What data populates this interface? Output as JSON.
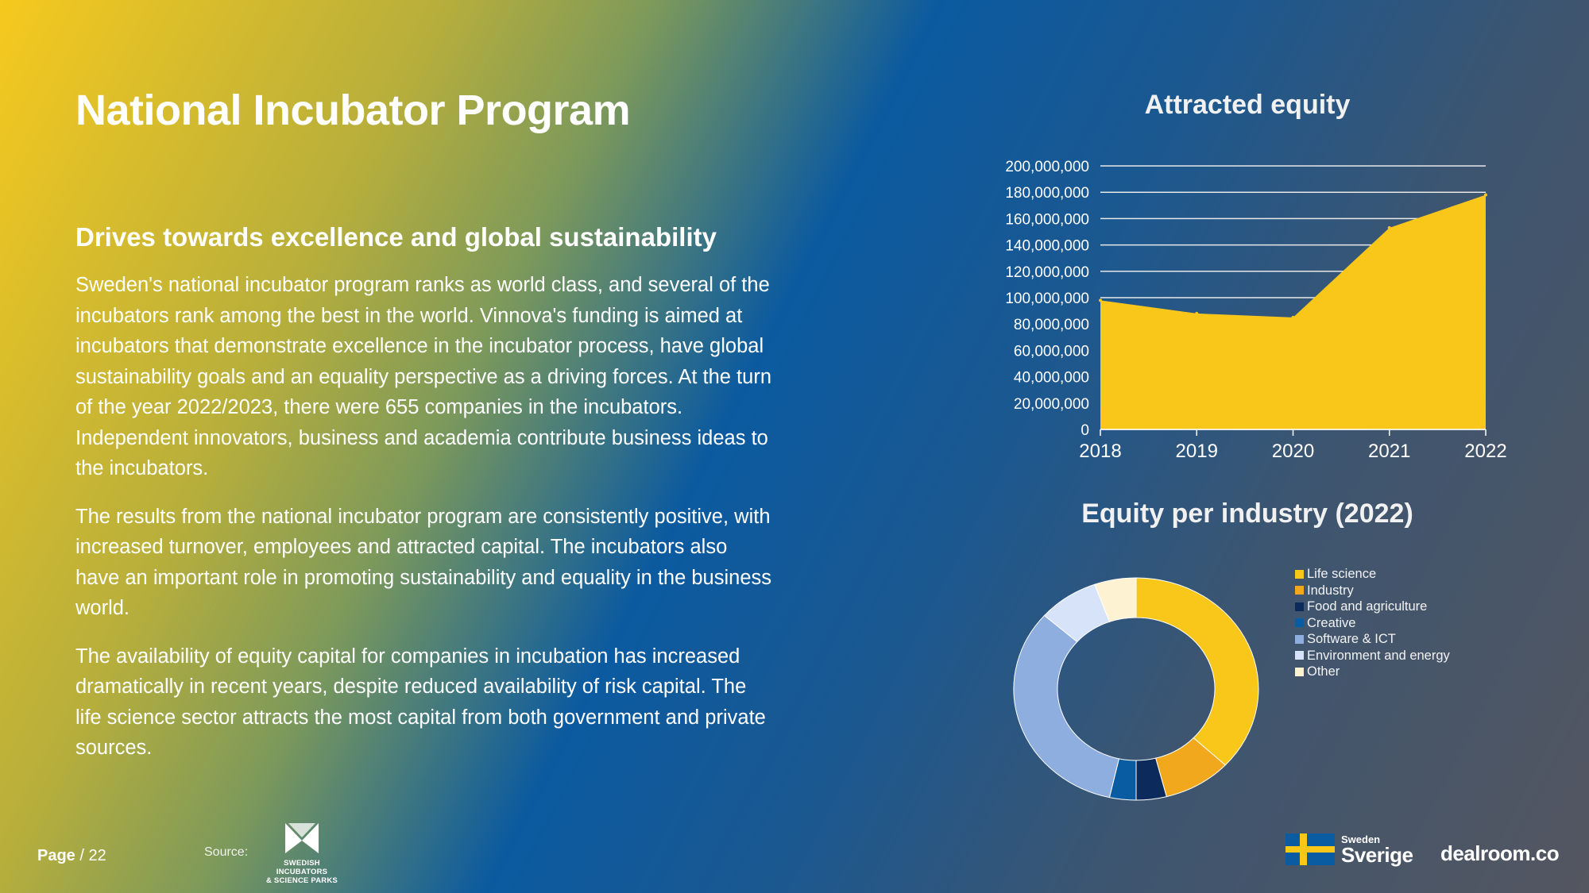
{
  "slide": {
    "title": "National Incubator Program",
    "subtitle": "Drives towards excellence and global sustainability",
    "paragraphs": [
      "Sweden's national incubator program ranks as world class, and several of the incubators rank among the best in the world. Vinnova's funding is aimed at incubators that demonstrate excellence in the incubator process, have global sustainability goals and an equality perspective as a driving forces. At the turn of the year 2022/2023, there were 655 companies in the incubators. Independent innovators, business and academia contribute business ideas to the incubators.",
      "The results from the national incubator program are consistently positive, with increased turnover, employees and attracted capital. The incubators also have an important role in promoting sustainability and equality in the business world.",
      "The availability of equity capital for companies in incubation has increased dramatically in recent years, despite reduced availability of risk capital. The life science sector attracts the most capital from both government and private sources."
    ]
  },
  "footer": {
    "page_label": "Page",
    "page_suffix": "/ 22",
    "source_label": "Source:",
    "sisp_line1": "SWEDISH INCUBATORS",
    "sisp_line2": "& SCIENCE PARKS",
    "sverige_small": "Sweden",
    "sverige_big": "Sverige",
    "dealroom": "dealroom.co"
  },
  "chart_data": [
    {
      "type": "area",
      "title": "Attracted equity",
      "x": [
        "2018",
        "2019",
        "2020",
        "2021",
        "2022"
      ],
      "values": [
        98000000,
        88000000,
        85000000,
        153000000,
        178000000
      ],
      "ylim": [
        0,
        200000000
      ],
      "yticks": [
        0,
        20000000,
        40000000,
        60000000,
        80000000,
        100000000,
        120000000,
        140000000,
        160000000,
        180000000,
        200000000
      ],
      "ytick_labels": [
        "0",
        "20,000,000",
        "40,000,000",
        "60,000,000",
        "80,000,000",
        "100,000,000",
        "120,000,000",
        "140,000,000",
        "160,000,000",
        "180,000,000",
        "200,000,000"
      ],
      "grid": true,
      "color": "#f9c61a",
      "xlabel": "",
      "ylabel": ""
    },
    {
      "type": "pie",
      "title": "Equity per industry (2022)",
      "donut": true,
      "legend_position": "right",
      "categories": [
        "Life science",
        "Industry",
        "Food and agriculture",
        "Creative",
        "Software & ICT",
        "Environment and energy",
        "Other"
      ],
      "values": [
        37,
        9,
        4,
        3.5,
        33,
        8,
        5.5
      ],
      "colors": [
        "#f9c61a",
        "#f2a81c",
        "#0d2a5c",
        "#0a5ca2",
        "#8eaee0",
        "#d6e3f8",
        "#fdf3d2"
      ]
    }
  ]
}
